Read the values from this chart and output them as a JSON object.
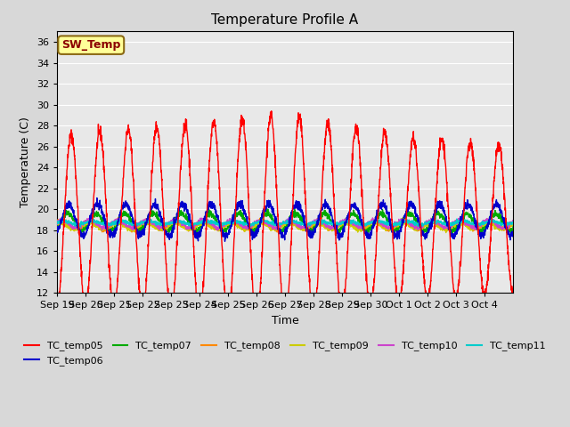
{
  "title": "Temperature Profile A",
  "xlabel": "Time",
  "ylabel": "Temperature (C)",
  "ylim": [
    12,
    37
  ],
  "yticks": [
    12,
    14,
    16,
    18,
    20,
    22,
    24,
    26,
    28,
    30,
    32,
    34,
    36
  ],
  "background_color": "#e8e8e8",
  "sw_temp_label": "SW_Temp",
  "sw_temp_box_color": "#ffff99",
  "sw_temp_text_color": "#8b0000",
  "sw_temp_border_color": "#8b6914",
  "series_colors": {
    "TC_temp05": "#ff0000",
    "TC_temp06": "#0000cc",
    "TC_temp07": "#00aa00",
    "TC_temp08": "#ff8800",
    "TC_temp09": "#cccc00",
    "TC_temp10": "#cc44cc",
    "TC_temp11": "#00cccc"
  },
  "tick_labels": [
    "Sep 19",
    "Sep 20",
    "Sep 21",
    "Sep 22",
    "Sep 23",
    "Sep 24",
    "Sep 25",
    "Sep 26",
    "Sep 27",
    "Sep 28",
    "Sep 29",
    "Sep 30",
    "Oct 1",
    "Oct 2",
    "Oct 3",
    "Oct 4"
  ],
  "n_days": 16,
  "seed": 42
}
